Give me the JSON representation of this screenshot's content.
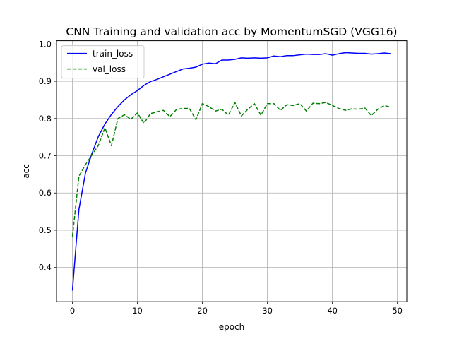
{
  "chart_data": {
    "type": "line",
    "title": "CNN Training and validation acc by MomentumSGD (VGG16)",
    "xlabel": "epoch",
    "ylabel": "acc",
    "xlim": [
      -2.45,
      51.45
    ],
    "ylim": [
      0.308,
      1.009
    ],
    "xticks": [
      0,
      10,
      20,
      30,
      40,
      50
    ],
    "yticks": [
      0.4,
      0.5,
      0.6,
      0.7,
      0.8,
      0.9,
      1.0
    ],
    "grid": true,
    "legend_position": "upper-left",
    "series": [
      {
        "name": "train_loss",
        "color": "#0000ff",
        "style": "solid",
        "x": [
          0,
          1,
          2,
          3,
          4,
          5,
          6,
          7,
          8,
          9,
          10,
          11,
          12,
          13,
          14,
          15,
          16,
          17,
          18,
          19,
          20,
          21,
          22,
          23,
          24,
          25,
          26,
          27,
          28,
          29,
          30,
          31,
          32,
          33,
          34,
          35,
          36,
          37,
          38,
          39,
          40,
          41,
          42,
          43,
          44,
          45,
          46,
          47,
          48,
          49
        ],
        "y": [
          0.338,
          0.556,
          0.653,
          0.706,
          0.752,
          0.785,
          0.811,
          0.832,
          0.85,
          0.864,
          0.875,
          0.889,
          0.899,
          0.905,
          0.912,
          0.919,
          0.926,
          0.933,
          0.935,
          0.938,
          0.946,
          0.949,
          0.947,
          0.957,
          0.957,
          0.959,
          0.963,
          0.962,
          0.963,
          0.962,
          0.963,
          0.968,
          0.966,
          0.969,
          0.969,
          0.971,
          0.973,
          0.972,
          0.972,
          0.974,
          0.97,
          0.974,
          0.977,
          0.976,
          0.975,
          0.975,
          0.973,
          0.974,
          0.976,
          0.974
        ]
      },
      {
        "name": "val_loss",
        "color": "#008000",
        "style": "dashed",
        "x": [
          0,
          1,
          2,
          3,
          4,
          5,
          6,
          7,
          8,
          9,
          10,
          11,
          12,
          13,
          14,
          15,
          16,
          17,
          18,
          19,
          20,
          21,
          22,
          23,
          24,
          25,
          26,
          27,
          28,
          29,
          30,
          31,
          32,
          33,
          34,
          35,
          36,
          37,
          38,
          39,
          40,
          41,
          42,
          43,
          44,
          45,
          46,
          47,
          48,
          49
        ],
        "y": [
          0.483,
          0.645,
          0.676,
          0.702,
          0.728,
          0.775,
          0.727,
          0.8,
          0.81,
          0.798,
          0.815,
          0.787,
          0.813,
          0.818,
          0.822,
          0.805,
          0.824,
          0.827,
          0.827,
          0.797,
          0.84,
          0.832,
          0.82,
          0.825,
          0.809,
          0.843,
          0.807,
          0.825,
          0.84,
          0.809,
          0.84,
          0.84,
          0.822,
          0.837,
          0.835,
          0.84,
          0.82,
          0.841,
          0.84,
          0.843,
          0.835,
          0.827,
          0.822,
          0.826,
          0.825,
          0.828,
          0.808,
          0.825,
          0.835,
          0.83
        ]
      }
    ]
  }
}
